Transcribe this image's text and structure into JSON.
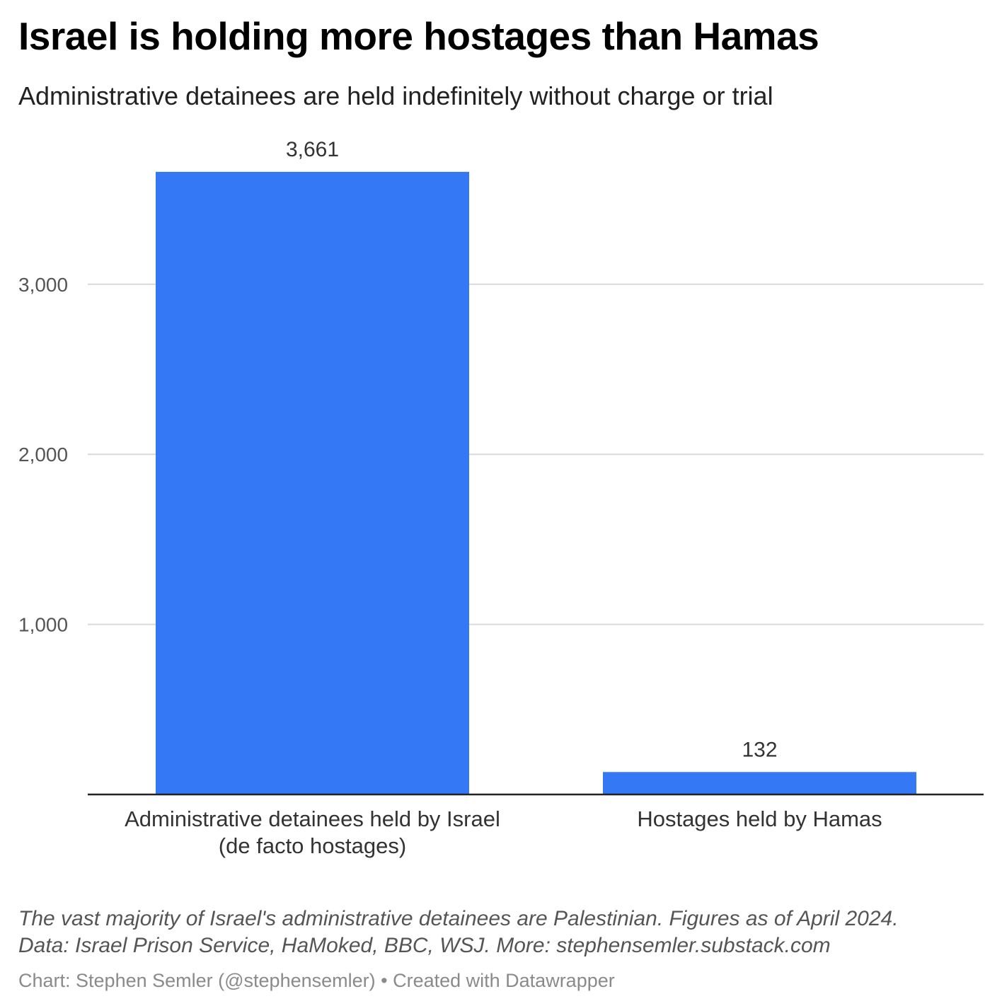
{
  "chart_data": {
    "type": "bar",
    "title": "Israel is holding more hostages than Hamas",
    "subtitle": "Administrative detainees are held indefinitely without charge or trial",
    "categories": [
      [
        "Administrative detainees held by Israel",
        "(de facto hostages)"
      ],
      [
        "Hostages held by Hamas"
      ]
    ],
    "values": [
      3661,
      132
    ],
    "value_labels": [
      "3,661",
      "132"
    ],
    "yticks": [
      1000,
      2000,
      3000
    ],
    "ytick_labels": [
      "1,000",
      "2,000",
      "3,000"
    ],
    "ylim": [
      0,
      3661
    ],
    "grid": true,
    "bar_color": "#3478F6",
    "xlabel": "",
    "ylabel": ""
  },
  "notes": {
    "line1": "The vast majority of Israel's administrative detainees are Palestinian. Figures as of April 2024.",
    "line2": "Data: Israel Prison Service, HaMoked, BBC, WSJ. More: stephensemler.substack.com"
  },
  "credit": "Chart: Stephen Semler (@stephensemler) • Created with Datawrapper"
}
